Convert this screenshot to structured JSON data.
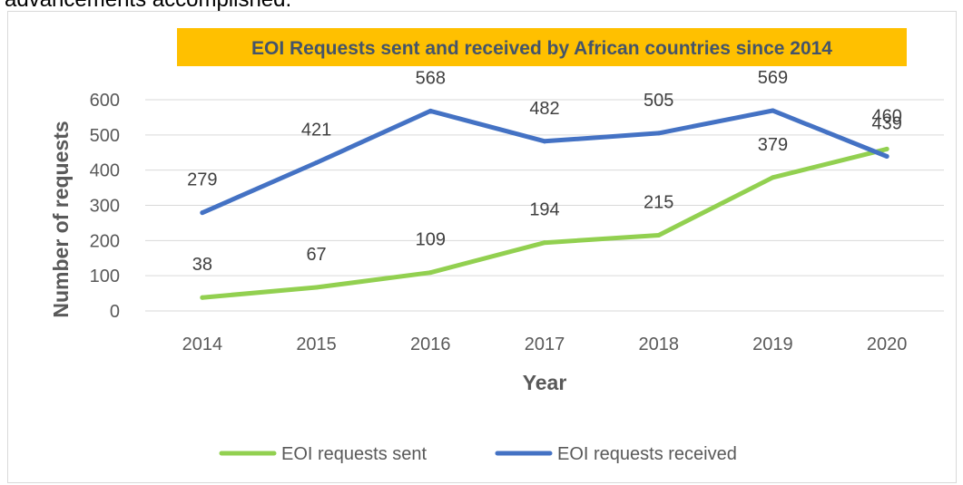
{
  "page": {
    "top_text": "advancements accomplished."
  },
  "chart_data": {
    "type": "line",
    "title": "EOI Requests sent and received by African countries since 2014",
    "xlabel": "Year",
    "ylabel": "Number of requests",
    "categories": [
      "2014",
      "2015",
      "2016",
      "2017",
      "2018",
      "2019",
      "2020"
    ],
    "ylim": [
      0,
      600
    ],
    "yticks": [
      0,
      100,
      200,
      300,
      400,
      500,
      600
    ],
    "grid": true,
    "legend_position": "bottom",
    "series": [
      {
        "name": "EOI requests sent",
        "color": "#92d050",
        "values": [
          38,
          67,
          109,
          194,
          215,
          379,
          460
        ]
      },
      {
        "name": "EOI requests received",
        "color": "#4472c4",
        "values": [
          279,
          421,
          568,
          482,
          505,
          569,
          439
        ]
      }
    ],
    "title_background": "#ffc000"
  }
}
